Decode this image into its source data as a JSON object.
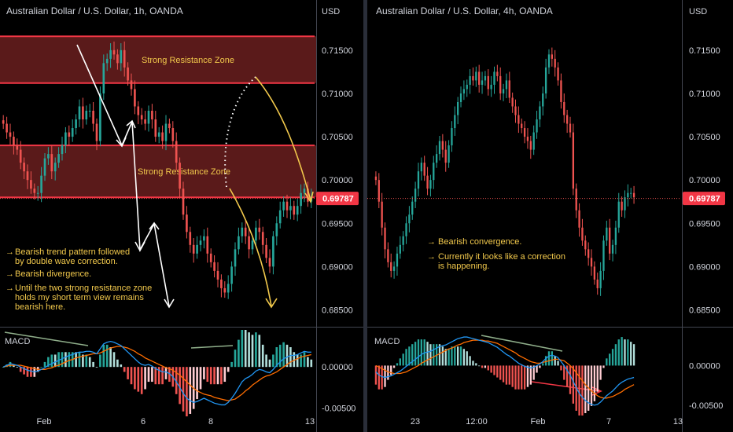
{
  "colors": {
    "background": "#000000",
    "up": "#26a69a",
    "down": "#ef5350",
    "zone_fill": "#5a1a1a",
    "zone_border": "#f23645",
    "annotation": "#f2c94c",
    "arrow_white": "#ffffff",
    "macd_line": "#2196f3",
    "signal_line": "#ff6d00",
    "divergence_line": "#8fae8a"
  },
  "chart_data": [
    {
      "type": "candlestick",
      "title": "Australian Dollar / U.S. Dollar, 1h, OANDA",
      "currency_label": "USD",
      "y_ticks": [
        "0.71500",
        "0.71000",
        "0.70500",
        "0.70000",
        "0.69500",
        "0.69000",
        "0.68500"
      ],
      "ylim": [
        0.6845,
        0.7168
      ],
      "x_ticks": [
        "Feb",
        "6",
        "8",
        "13"
      ],
      "last_price": "0.69787",
      "zones": [
        {
          "label": "Strong Resistance Zone",
          "low": 0.7112,
          "high": 0.7166
        },
        {
          "label": "Strong Resistance Zone",
          "low": 0.698,
          "high": 0.704
        }
      ],
      "notes": [
        "Bearish trend pattern followed by double wave correction.",
        "Bearish divergence.",
        "Until the two strong resistance zone holds my short term view remains bearish here."
      ],
      "close_series": [
        0.7065,
        0.7055,
        0.705,
        0.704,
        0.7035,
        0.702,
        0.701,
        0.7,
        0.699,
        0.6985,
        0.6985,
        0.7005,
        0.7025,
        0.703,
        0.701,
        0.702,
        0.703,
        0.704,
        0.7055,
        0.705,
        0.706,
        0.707,
        0.7085,
        0.707,
        0.708,
        0.708,
        0.7065,
        0.7045,
        0.71,
        0.7135,
        0.714,
        0.715,
        0.7145,
        0.7135,
        0.715,
        0.713,
        0.7115,
        0.7105,
        0.7085,
        0.7075,
        0.707,
        0.7065,
        0.708,
        0.707,
        0.705,
        0.7055,
        0.7045,
        0.7065,
        0.706,
        0.7045,
        0.702,
        0.699,
        0.696,
        0.694,
        0.6925,
        0.6915,
        0.6925,
        0.693,
        0.6935,
        0.6915,
        0.6905,
        0.6895,
        0.6885,
        0.6875,
        0.687,
        0.688,
        0.69,
        0.692,
        0.6935,
        0.6945,
        0.6935,
        0.692,
        0.693,
        0.6945,
        0.694,
        0.6925,
        0.691,
        0.69,
        0.6935,
        0.695,
        0.6965,
        0.6975,
        0.6965,
        0.697,
        0.696,
        0.697,
        0.6985,
        0.699,
        0.6975,
        0.698
      ],
      "macd": {
        "label": "MACD",
        "y_ticks": [
          "0.00000",
          "-0.00500"
        ],
        "ylim": [
          -0.0058,
          0.0045
        ],
        "macd_line": [
          0.0,
          0.0002,
          0.0004,
          0.0003,
          0.0002,
          0.0,
          -0.0002,
          -0.0004,
          -0.0005,
          -0.0006,
          -0.0005,
          -0.0003,
          -0.0001,
          0.0002,
          0.0004,
          0.0006,
          0.0008,
          0.001,
          0.0012,
          0.0014,
          0.0015,
          0.0017,
          0.0018,
          0.0018,
          0.0019,
          0.0019,
          0.0018,
          0.0016,
          0.0022,
          0.0028,
          0.003,
          0.0031,
          0.003,
          0.0028,
          0.0026,
          0.0022,
          0.0018,
          0.0014,
          0.001,
          0.0006,
          0.0003,
          0.0002,
          0.0003,
          0.0001,
          -0.0002,
          -0.0004,
          -0.0006,
          -0.0006,
          -0.0008,
          -0.0012,
          -0.0018,
          -0.0025,
          -0.0032,
          -0.0038,
          -0.0041,
          -0.0043,
          -0.0042,
          -0.004,
          -0.0038,
          -0.004,
          -0.0042,
          -0.0044,
          -0.0045,
          -0.0046,
          -0.0046,
          -0.0043,
          -0.0038,
          -0.0032,
          -0.0025,
          -0.0018,
          -0.0014,
          -0.0012,
          -0.0009,
          -0.0005,
          -0.0003,
          -0.0004,
          -0.0006,
          -0.0007,
          -0.0003,
          0.0002,
          0.0006,
          0.001,
          0.0012,
          0.0014,
          0.0014,
          0.0015,
          0.0017,
          0.0019,
          0.0018,
          0.0018
        ],
        "signal_line": [
          0.0,
          0.0001,
          0.0002,
          0.0002,
          0.0002,
          0.0002,
          0.0001,
          0.0,
          -0.0001,
          -0.0002,
          -0.0003,
          -0.0003,
          -0.0003,
          -0.0002,
          -0.0001,
          0.0001,
          0.0002,
          0.0004,
          0.0006,
          0.0008,
          0.0009,
          0.0011,
          0.0012,
          0.0013,
          0.0014,
          0.0015,
          0.0016,
          0.0016,
          0.0017,
          0.0019,
          0.0021,
          0.0023,
          0.0024,
          0.0025,
          0.0025,
          0.0024,
          0.0023,
          0.0021,
          0.0019,
          0.0016,
          0.0014,
          0.0011,
          0.0009,
          0.0007,
          0.0005,
          0.0003,
          0.0001,
          -0.0001,
          -0.0002,
          -0.0004,
          -0.0007,
          -0.001,
          -0.0014,
          -0.0018,
          -0.0022,
          -0.0026,
          -0.0029,
          -0.0031,
          -0.0033,
          -0.0034,
          -0.0035,
          -0.0037,
          -0.0038,
          -0.0039,
          -0.004,
          -0.0041,
          -0.004,
          -0.0039,
          -0.0036,
          -0.0033,
          -0.0029,
          -0.0026,
          -0.0022,
          -0.0019,
          -0.0016,
          -0.0013,
          -0.0011,
          -0.001,
          -0.0008,
          -0.0006,
          -0.0003,
          0.0,
          0.0003,
          0.0006,
          0.0008,
          0.001,
          0.0012,
          0.0013,
          0.0014,
          0.0015
        ]
      }
    },
    {
      "type": "candlestick",
      "title": "Australian Dollar / U.S. Dollar, 4h, OANDA",
      "currency_label": "USD",
      "y_ticks": [
        "0.71500",
        "0.71000",
        "0.70500",
        "0.70000",
        "0.69500",
        "0.69000",
        "0.68500"
      ],
      "ylim": [
        0.6845,
        0.7168
      ],
      "x_ticks": [
        "23",
        "12:00",
        "Feb",
        "7",
        "13"
      ],
      "last_price": "0.69787",
      "notes": [
        "Bearish convergence.",
        "Currently it looks like a correction is happening."
      ],
      "close_series": [
        0.7,
        0.6975,
        0.6945,
        0.692,
        0.6905,
        0.6895,
        0.69,
        0.6915,
        0.6925,
        0.6935,
        0.695,
        0.696,
        0.6975,
        0.699,
        0.701,
        0.702,
        0.7005,
        0.699,
        0.7,
        0.702,
        0.703,
        0.7045,
        0.7035,
        0.702,
        0.704,
        0.706,
        0.7075,
        0.709,
        0.71,
        0.7105,
        0.711,
        0.712,
        0.7115,
        0.7125,
        0.711,
        0.7115,
        0.712,
        0.7105,
        0.711,
        0.7125,
        0.712,
        0.71,
        0.7105,
        0.7115,
        0.7095,
        0.7085,
        0.7075,
        0.7065,
        0.706,
        0.705,
        0.7045,
        0.7035,
        0.7055,
        0.707,
        0.7085,
        0.71,
        0.713,
        0.7145,
        0.714,
        0.713,
        0.7115,
        0.709,
        0.7075,
        0.7065,
        0.7055,
        0.699,
        0.6965,
        0.6945,
        0.693,
        0.692,
        0.691,
        0.69,
        0.6885,
        0.6875,
        0.6895,
        0.693,
        0.6945,
        0.6915,
        0.6925,
        0.6945,
        0.6975,
        0.6965,
        0.698,
        0.6985,
        0.6985,
        0.698
      ],
      "macd": {
        "label": "MACD",
        "y_ticks": [
          "0.00000",
          "-0.00500"
        ],
        "ylim": [
          -0.0062,
          0.0045
        ],
        "macd_line": [
          -0.0008,
          -0.0012,
          -0.0014,
          -0.0015,
          -0.0014,
          -0.0013,
          -0.0011,
          -0.0009,
          -0.0007,
          -0.0004,
          -0.0001,
          0.0002,
          0.0005,
          0.0008,
          0.0011,
          0.0014,
          0.0016,
          0.0017,
          0.0018,
          0.002,
          0.0022,
          0.0024,
          0.0025,
          0.0026,
          0.0028,
          0.003,
          0.0032,
          0.0034,
          0.0035,
          0.0036,
          0.0036,
          0.0035,
          0.0034,
          0.0033,
          0.0032,
          0.0031,
          0.003,
          0.0029,
          0.0027,
          0.0025,
          0.0023,
          0.002,
          0.0017,
          0.0014,
          0.0012,
          0.0009,
          0.0006,
          0.0003,
          0.0001,
          -0.0001,
          -0.0002,
          -0.0003,
          -0.0002,
          0.0,
          0.0002,
          0.0005,
          0.0009,
          0.0012,
          0.0013,
          0.0012,
          0.001,
          0.0005,
          0.0,
          -0.0006,
          -0.0012,
          -0.002,
          -0.0028,
          -0.0035,
          -0.004,
          -0.0044,
          -0.0047,
          -0.0049,
          -0.005,
          -0.0049,
          -0.0046,
          -0.0042,
          -0.0038,
          -0.0035,
          -0.0032,
          -0.0028,
          -0.0024,
          -0.0021,
          -0.0019,
          -0.0017,
          -0.0016,
          -0.0015
        ],
        "signal_line": [
          0.0,
          -0.0002,
          -0.0004,
          -0.0006,
          -0.0008,
          -0.0009,
          -0.001,
          -0.001,
          -0.001,
          -0.0009,
          -0.0008,
          -0.0006,
          -0.0004,
          -0.0002,
          0.0,
          0.0003,
          0.0005,
          0.0007,
          0.0009,
          0.0011,
          0.0013,
          0.0015,
          0.0017,
          0.0019,
          0.0021,
          0.0022,
          0.0024,
          0.0026,
          0.0027,
          0.0029,
          0.003,
          0.0031,
          0.0032,
          0.0032,
          0.0032,
          0.0032,
          0.0031,
          0.0031,
          0.003,
          0.0029,
          0.0028,
          0.0026,
          0.0024,
          0.0022,
          0.002,
          0.0018,
          0.0016,
          0.0013,
          0.0011,
          0.0009,
          0.0007,
          0.0005,
          0.0004,
          0.0003,
          0.0003,
          0.0004,
          0.0005,
          0.0006,
          0.0007,
          0.0008,
          0.0008,
          0.0007,
          0.0006,
          0.0003,
          0.0,
          -0.0004,
          -0.0009,
          -0.0014,
          -0.0019,
          -0.0024,
          -0.0028,
          -0.0032,
          -0.0035,
          -0.0038,
          -0.004,
          -0.0041,
          -0.0041,
          -0.004,
          -0.0039,
          -0.0037,
          -0.0035,
          -0.0033,
          -0.003,
          -0.0028,
          -0.0026,
          -0.0024
        ]
      }
    }
  ]
}
